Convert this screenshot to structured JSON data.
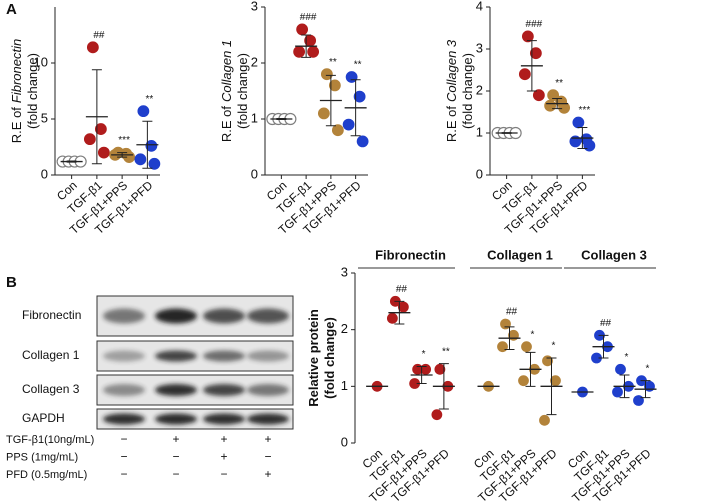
{
  "panels": [
    "A",
    "B"
  ],
  "blot": {
    "rows": [
      "Fibronectin",
      "Collagen  1",
      "Collagen  3",
      "GAPDH"
    ],
    "treatments": [
      {
        "label": "TGF-β1(10ng/mL)",
        "signs": [
          "−",
          "+",
          "+",
          "+"
        ]
      },
      {
        "label": "PPS (1mg/mL)",
        "signs": [
          "−",
          "−",
          "+",
          "−"
        ]
      },
      {
        "label": "PFD (0.5mg/mL)",
        "signs": [
          "−",
          "−",
          "−",
          "+"
        ]
      }
    ]
  },
  "chart_data": [
    {
      "type": "dot",
      "ylabel": [
        [
          {
            "text": "R.E of"
          },
          {
            "text": "Fibronectin",
            "italic": true
          }
        ],
        [
          {
            "text": "(fold change)"
          }
        ]
      ],
      "ylim": [
        0,
        15
      ],
      "yticks": [
        0,
        5,
        10
      ],
      "groups": [
        {
          "name": "Con",
          "color": "#7f7f7f",
          "hollow": true,
          "values": [
            1.2,
            1.2,
            1.2,
            1.2
          ],
          "mean": 1.2,
          "sd": 0.05
        },
        {
          "name": "TGF-β1",
          "color": "#b01c1c",
          "values": [
            11.4,
            4.1,
            3.2,
            2.0
          ],
          "mean": 5.2,
          "sd": 4.2,
          "annotation": "##"
        },
        {
          "name": "TGF-β1+PPS",
          "color": "#b3833a",
          "values": [
            2.0,
            1.9,
            1.8,
            1.6
          ],
          "mean": 1.8,
          "sd": 0.2,
          "annotation": "***"
        },
        {
          "name": "TGF-β1+PFD",
          "color": "#1f3fcc",
          "values": [
            5.7,
            2.6,
            1.4,
            1.0
          ],
          "mean": 2.7,
          "sd": 2.1,
          "annotation": "**"
        }
      ]
    },
    {
      "type": "dot",
      "ylabel": [
        [
          {
            "text": "R.E of"
          },
          {
            "text": "Collagen 1",
            "italic": true
          }
        ],
        [
          {
            "text": "(fold change)"
          }
        ]
      ],
      "ylim": [
        0,
        3
      ],
      "yticks": [
        0,
        1,
        2,
        3
      ],
      "groups": [
        {
          "name": "Con",
          "color": "#7f7f7f",
          "hollow": true,
          "values": [
            1,
            1,
            1,
            1
          ],
          "mean": 1,
          "sd": 0.01
        },
        {
          "name": "TGF-β1",
          "color": "#b01c1c",
          "values": [
            2.6,
            2.4,
            2.2,
            2.2
          ],
          "mean": 2.3,
          "sd": 0.2,
          "annotation": "###"
        },
        {
          "name": "TGF-β1+PPS",
          "color": "#b3833a",
          "values": [
            1.8,
            1.6,
            1.1,
            0.8
          ],
          "mean": 1.33,
          "sd": 0.45,
          "annotation": "**"
        },
        {
          "name": "TGF-β1+PFD",
          "color": "#1f3fcc",
          "values": [
            1.75,
            1.4,
            0.9,
            0.6
          ],
          "mean": 1.2,
          "sd": 0.5,
          "annotation": "**"
        }
      ]
    },
    {
      "type": "dot",
      "ylabel": [
        [
          {
            "text": "R.E of"
          },
          {
            "text": "Collagen 3",
            "italic": true
          }
        ],
        [
          {
            "text": "(fold change)"
          }
        ]
      ],
      "ylim": [
        0,
        4
      ],
      "yticks": [
        0,
        1,
        2,
        3,
        4
      ],
      "groups": [
        {
          "name": "Con",
          "color": "#7f7f7f",
          "hollow": true,
          "values": [
            1,
            1,
            1,
            1
          ],
          "mean": 1,
          "sd": 0.01
        },
        {
          "name": "TGF-β1",
          "color": "#b01c1c",
          "values": [
            3.3,
            2.9,
            2.4,
            1.9
          ],
          "mean": 2.6,
          "sd": 0.6,
          "annotation": "###"
        },
        {
          "name": "TGF-β1+PPS",
          "color": "#b3833a",
          "values": [
            1.9,
            1.75,
            1.65,
            1.6
          ],
          "mean": 1.7,
          "sd": 0.12,
          "annotation": "**"
        },
        {
          "name": "TGF-β1+PFD",
          "color": "#1f3fcc",
          "values": [
            1.25,
            0.85,
            0.8,
            0.7
          ],
          "mean": 0.88,
          "sd": 0.25,
          "annotation": "***"
        }
      ]
    },
    {
      "type": "dot",
      "ylabel_bold": true,
      "ylabel": [
        [
          {
            "text": "Relative protein"
          }
        ],
        [
          {
            "text": "(fold change)"
          }
        ]
      ],
      "ylim": [
        0,
        3
      ],
      "yticks": [
        0,
        1,
        2,
        3
      ],
      "subplots": [
        {
          "title": "Fibronectin",
          "color": "#b01c1c",
          "groups": [
            {
              "name": "Con",
              "color": "#b01c1c",
              "values": [
                1
              ],
              "mean": 1,
              "sd": 0
            },
            {
              "name": "TGF-β1",
              "color": "#b01c1c",
              "values": [
                2.5,
                2.4,
                2.2
              ],
              "mean": 2.3,
              "sd": 0.2,
              "annotation": "##"
            },
            {
              "name": "TGF-β1+PPS",
              "color": "#b01c1c",
              "values": [
                1.3,
                1.3,
                1.05
              ],
              "mean": 1.2,
              "sd": 0.15,
              "annotation": "*"
            },
            {
              "name": "TGF-β1+PFD",
              "color": "#b01c1c",
              "values": [
                1.3,
                1.0,
                0.5
              ],
              "mean": 1.0,
              "sd": 0.4,
              "annotation": "**"
            }
          ]
        },
        {
          "title": "Collagen 1",
          "color": "#a0823e",
          "groups": [
            {
              "name": "Con",
              "color": "#b3833a",
              "values": [
                1
              ],
              "mean": 1,
              "sd": 0
            },
            {
              "name": "TGF-β1",
              "color": "#b3833a",
              "values": [
                2.1,
                1.9,
                1.7
              ],
              "mean": 1.85,
              "sd": 0.2,
              "annotation": "##"
            },
            {
              "name": "TGF-β1+PPS",
              "color": "#b3833a",
              "values": [
                1.7,
                1.3,
                1.1
              ],
              "mean": 1.3,
              "sd": 0.3,
              "annotation": "*"
            },
            {
              "name": "TGF-β1+PFD",
              "color": "#b3833a",
              "values": [
                1.45,
                1.1,
                0.4
              ],
              "mean": 1.0,
              "sd": 0.5,
              "annotation": "*"
            }
          ]
        },
        {
          "title": "Collagen 3",
          "color": "#1f3fcc",
          "groups": [
            {
              "name": "Con",
              "color": "#1f3fcc",
              "values": [
                0.9
              ],
              "mean": 0.9,
              "sd": 0
            },
            {
              "name": "TGF-β1",
              "color": "#1f3fcc",
              "values": [
                1.9,
                1.7,
                1.5
              ],
              "mean": 1.7,
              "sd": 0.2,
              "annotation": "##"
            },
            {
              "name": "TGF-β1+PPS",
              "color": "#1f3fcc",
              "values": [
                1.3,
                1.0,
                0.9
              ],
              "mean": 1.0,
              "sd": 0.2,
              "annotation": "*"
            },
            {
              "name": "TGF-β1+PFD",
              "color": "#1f3fcc",
              "values": [
                1.1,
                1.0,
                0.75
              ],
              "mean": 0.95,
              "sd": 0.15,
              "annotation": "*"
            }
          ]
        }
      ]
    }
  ]
}
